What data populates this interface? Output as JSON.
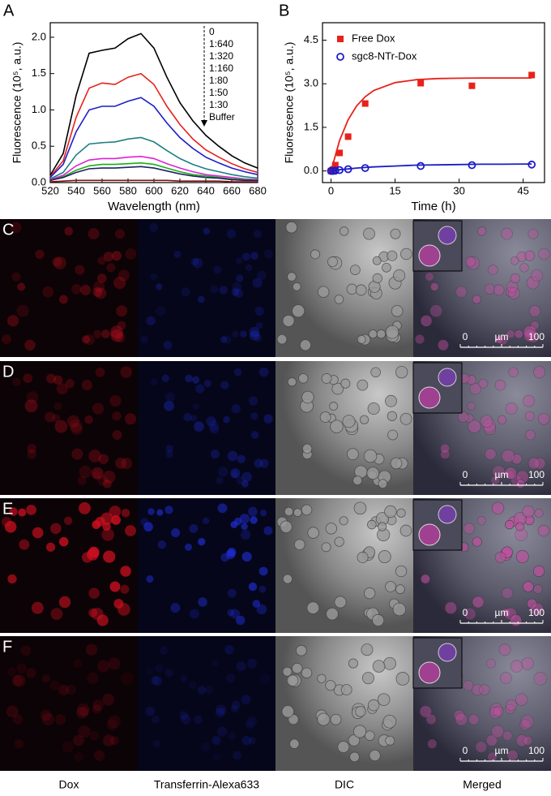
{
  "chart_data": [
    {
      "type": "line",
      "label": "A",
      "xlabel": "Wavelength (nm)",
      "ylabel": "Fluorescence (10⁵, a.u.)",
      "x": [
        520,
        530,
        540,
        550,
        560,
        570,
        580,
        590,
        600,
        610,
        620,
        630,
        640,
        650,
        660,
        670,
        680
      ],
      "series": [
        {
          "name": "0",
          "color": "#000000",
          "values": [
            0.1,
            0.4,
            1.2,
            1.78,
            1.82,
            1.85,
            1.98,
            2.05,
            1.85,
            1.45,
            1.1,
            0.85,
            0.65,
            0.5,
            0.37,
            0.27,
            0.2
          ]
        },
        {
          "name": "1:640",
          "color": "#e8211b",
          "values": [
            0.08,
            0.3,
            0.9,
            1.3,
            1.37,
            1.35,
            1.45,
            1.5,
            1.35,
            1.05,
            0.8,
            0.6,
            0.45,
            0.35,
            0.26,
            0.19,
            0.14
          ]
        },
        {
          "name": "1:320",
          "color": "#1c1cc8",
          "values": [
            0.07,
            0.25,
            0.7,
            1.0,
            1.05,
            1.05,
            1.12,
            1.17,
            1.05,
            0.82,
            0.62,
            0.47,
            0.35,
            0.27,
            0.2,
            0.15,
            0.11
          ]
        },
        {
          "name": "1:160",
          "color": "#1e8080",
          "values": [
            0.05,
            0.14,
            0.38,
            0.53,
            0.55,
            0.56,
            0.6,
            0.62,
            0.56,
            0.44,
            0.33,
            0.25,
            0.19,
            0.15,
            0.11,
            0.08,
            0.06
          ]
        },
        {
          "name": "1:80",
          "color": "#e020d8",
          "values": [
            0.04,
            0.1,
            0.23,
            0.31,
            0.33,
            0.33,
            0.35,
            0.36,
            0.33,
            0.26,
            0.2,
            0.15,
            0.11,
            0.09,
            0.07,
            0.05,
            0.04
          ]
        },
        {
          "name": "1:50",
          "color": "#18b018",
          "values": [
            0.03,
            0.08,
            0.17,
            0.23,
            0.25,
            0.25,
            0.26,
            0.27,
            0.25,
            0.2,
            0.15,
            0.11,
            0.09,
            0.07,
            0.05,
            0.04,
            0.03
          ]
        },
        {
          "name": "1:30",
          "color": "#202060",
          "values": [
            0.03,
            0.07,
            0.14,
            0.19,
            0.2,
            0.2,
            0.21,
            0.22,
            0.2,
            0.16,
            0.12,
            0.09,
            0.07,
            0.06,
            0.04,
            0.03,
            0.03
          ]
        },
        {
          "name": "Buffer",
          "color": "#801010",
          "values": [
            0.01,
            0.02,
            0.03,
            0.03,
            0.03,
            0.03,
            0.03,
            0.03,
            0.03,
            0.03,
            0.02,
            0.02,
            0.02,
            0.02,
            0.01,
            0.01,
            0.01
          ]
        }
      ],
      "xlim": [
        520,
        680
      ],
      "xticks": [
        520,
        540,
        560,
        580,
        600,
        620,
        640,
        660,
        680
      ],
      "ylim": [
        0,
        2.2
      ],
      "yticks": [
        {
          "value": 0,
          "label": "0.0"
        },
        {
          "value": 0.5,
          "label": "0.5"
        },
        {
          "value": 1,
          "label": "1.0"
        },
        {
          "value": 1.5,
          "label": "1.5"
        },
        {
          "value": 2,
          "label": "2.0"
        }
      ]
    },
    {
      "type": "scatter",
      "label": "B",
      "xlabel": "Time (h)",
      "ylabel": "Fluorescence (10⁵, a.u.)",
      "legend": "upper left",
      "fit_x": [
        0,
        2,
        4,
        6,
        8,
        10,
        15,
        20,
        25,
        30,
        35,
        40,
        47
      ],
      "series": [
        {
          "name": "Free Dox",
          "color": "#e8211b",
          "marker": "square",
          "x": [
            0,
            0.5,
            1,
            2,
            4,
            8,
            21,
            33,
            47
          ],
          "values": [
            0,
            0.05,
            0.2,
            0.62,
            1.18,
            2.32,
            3.02,
            2.93,
            3.3
          ],
          "fit": [
            0,
            1.05,
            1.76,
            2.24,
            2.55,
            2.77,
            3.04,
            3.14,
            3.18,
            3.19,
            3.2,
            3.2,
            3.2
          ]
        },
        {
          "name": "sgc8-NTr-Dox",
          "color": "#1c1cc8",
          "marker": "circle",
          "x": [
            0,
            0.5,
            1,
            2,
            4,
            8,
            21,
            33,
            47
          ],
          "values": [
            0,
            0,
            0.01,
            0.03,
            0.06,
            0.1,
            0.17,
            0.2,
            0.22
          ],
          "fit": [
            0,
            0.04,
            0.07,
            0.1,
            0.12,
            0.14,
            0.17,
            0.2,
            0.21,
            0.22,
            0.23,
            0.23,
            0.24
          ]
        }
      ],
      "xlim": [
        -2,
        50
      ],
      "xticks": [
        0,
        15,
        30,
        45
      ],
      "ylim": [
        -0.4,
        5.1
      ],
      "yticks": [
        {
          "value": 0,
          "label": "0.0"
        },
        {
          "value": 1.5,
          "label": "1.5"
        },
        {
          "value": 3,
          "label": "3.0"
        },
        {
          "value": 4.5,
          "label": "4.5"
        }
      ]
    }
  ],
  "image_rows": [
    {
      "label": "C",
      "scale_bar": [
        "0",
        "µm",
        "100"
      ]
    },
    {
      "label": "D",
      "scale_bar": [
        "0",
        "µm",
        "100"
      ]
    },
    {
      "label": "E",
      "scale_bar": [
        "0",
        "µm",
        "100"
      ]
    },
    {
      "label": "F",
      "scale_bar": [
        "0",
        "µm",
        "100"
      ]
    }
  ],
  "columns": [
    "Dox",
    "Transferrin-Alexa633",
    "DIC",
    "Merged"
  ]
}
